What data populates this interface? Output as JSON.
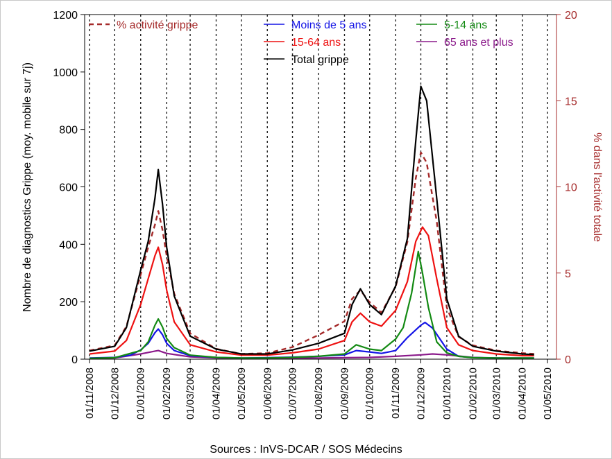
{
  "chart_data": {
    "type": "line",
    "title": "",
    "source": "Sources : InVS-DCAR / SOS Médecins",
    "ylabel": "Nombre de diagnostics Grippe (moy. mobile sur 7j)",
    "y2label": "% dans l'activité totale",
    "ylim": [
      0,
      1200
    ],
    "y2lim": [
      0,
      20
    ],
    "yticks": [
      "0",
      "200",
      "400",
      "600",
      "800",
      "1000",
      "1200"
    ],
    "y2ticks": [
      "0",
      "5",
      "10",
      "15",
      "20"
    ],
    "xticks": [
      "01/11/2008",
      "01/12/2008",
      "01/01/2009",
      "01/02/2009",
      "01/03/2009",
      "01/04/2009",
      "01/05/2009",
      "01/06/2009",
      "01/07/2009",
      "01/08/2009",
      "01/09/2009",
      "01/10/2009",
      "01/11/2009",
      "01/12/2009",
      "01/01/2010",
      "01/02/2010",
      "01/03/2010",
      "01/04/2010",
      "01/05/2010"
    ],
    "grid": "vertical dotted",
    "legend_position": "top",
    "series": [
      {
        "name": "Moins de 5 ans",
        "axis": "left",
        "color": "#1515e6",
        "style": "solid",
        "points": [
          [
            "01/11/2008",
            4
          ],
          [
            "01/12/2008",
            6
          ],
          [
            "20/12/2008",
            14
          ],
          [
            "01/01/2009",
            32
          ],
          [
            "10/01/2009",
            55
          ],
          [
            "18/01/2009",
            92
          ],
          [
            "22/01/2009",
            105
          ],
          [
            "27/01/2009",
            85
          ],
          [
            "01/02/2009",
            55
          ],
          [
            "10/02/2009",
            30
          ],
          [
            "01/03/2009",
            12
          ],
          [
            "01/04/2009",
            6
          ],
          [
            "01/05/2009",
            4
          ],
          [
            "01/06/2009",
            5
          ],
          [
            "01/07/2009",
            7
          ],
          [
            "01/08/2009",
            10
          ],
          [
            "01/09/2009",
            15
          ],
          [
            "15/09/2009",
            30
          ],
          [
            "01/10/2009",
            25
          ],
          [
            "15/10/2009",
            20
          ],
          [
            "01/11/2009",
            30
          ],
          [
            "15/11/2009",
            75
          ],
          [
            "01/12/2009",
            118
          ],
          [
            "06/12/2009",
            128
          ],
          [
            "15/12/2009",
            108
          ],
          [
            "01/01/2010",
            35
          ],
          [
            "15/01/2010",
            10
          ],
          [
            "01/02/2010",
            5
          ],
          [
            "01/03/2010",
            4
          ],
          [
            "01/04/2010",
            4
          ],
          [
            "15/04/2010",
            4
          ]
        ]
      },
      {
        "name": "5-14 ans",
        "axis": "left",
        "color": "#138a13",
        "style": "solid",
        "points": [
          [
            "01/11/2008",
            3
          ],
          [
            "01/12/2008",
            5
          ],
          [
            "01/01/2009",
            30
          ],
          [
            "10/01/2009",
            60
          ],
          [
            "18/01/2009",
            118
          ],
          [
            "22/01/2009",
            140
          ],
          [
            "27/01/2009",
            112
          ],
          [
            "01/02/2009",
            72
          ],
          [
            "10/02/2009",
            40
          ],
          [
            "01/03/2009",
            14
          ],
          [
            "01/04/2009",
            6
          ],
          [
            "01/05/2009",
            4
          ],
          [
            "01/06/2009",
            4
          ],
          [
            "01/07/2009",
            6
          ],
          [
            "01/08/2009",
            10
          ],
          [
            "01/09/2009",
            18
          ],
          [
            "15/09/2009",
            50
          ],
          [
            "01/10/2009",
            35
          ],
          [
            "15/10/2009",
            30
          ],
          [
            "01/11/2009",
            70
          ],
          [
            "10/11/2009",
            110
          ],
          [
            "20/11/2009",
            230
          ],
          [
            "28/11/2009",
            375
          ],
          [
            "03/12/2009",
            300
          ],
          [
            "10/12/2009",
            180
          ],
          [
            "20/12/2009",
            60
          ],
          [
            "01/01/2010",
            22
          ],
          [
            "15/01/2010",
            10
          ],
          [
            "01/02/2010",
            5
          ],
          [
            "01/03/2010",
            4
          ],
          [
            "01/04/2010",
            4
          ],
          [
            "15/04/2010",
            4
          ]
        ]
      },
      {
        "name": "15-64 ans",
        "axis": "left",
        "color": "#ee1111",
        "style": "solid",
        "points": [
          [
            "01/11/2008",
            18
          ],
          [
            "01/12/2008",
            28
          ],
          [
            "15/12/2008",
            65
          ],
          [
            "01/01/2009",
            190
          ],
          [
            "10/01/2009",
            280
          ],
          [
            "18/01/2009",
            360
          ],
          [
            "22/01/2009",
            390
          ],
          [
            "27/01/2009",
            330
          ],
          [
            "01/02/2009",
            240
          ],
          [
            "10/02/2009",
            130
          ],
          [
            "01/03/2009",
            50
          ],
          [
            "01/04/2009",
            25
          ],
          [
            "01/05/2009",
            14
          ],
          [
            "01/06/2009",
            14
          ],
          [
            "01/07/2009",
            22
          ],
          [
            "01/08/2009",
            35
          ],
          [
            "01/09/2009",
            65
          ],
          [
            "10/09/2009",
            130
          ],
          [
            "20/09/2009",
            160
          ],
          [
            "01/10/2009",
            130
          ],
          [
            "15/10/2009",
            115
          ],
          [
            "01/11/2009",
            170
          ],
          [
            "15/11/2009",
            270
          ],
          [
            "25/11/2009",
            410
          ],
          [
            "03/12/2009",
            460
          ],
          [
            "10/12/2009",
            430
          ],
          [
            "20/12/2009",
            280
          ],
          [
            "01/01/2010",
            110
          ],
          [
            "15/01/2010",
            50
          ],
          [
            "01/02/2010",
            30
          ],
          [
            "01/03/2010",
            18
          ],
          [
            "01/04/2010",
            12
          ],
          [
            "15/04/2010",
            12
          ]
        ]
      },
      {
        "name": "65 ans et plus",
        "axis": "left",
        "color": "#8b1a8b",
        "style": "solid",
        "points": [
          [
            "01/11/2008",
            3
          ],
          [
            "01/12/2008",
            4
          ],
          [
            "01/01/2009",
            18
          ],
          [
            "18/01/2009",
            28
          ],
          [
            "22/01/2009",
            30
          ],
          [
            "01/02/2009",
            20
          ],
          [
            "01/03/2009",
            8
          ],
          [
            "01/04/2009",
            4
          ],
          [
            "01/05/2009",
            3
          ],
          [
            "01/06/2009",
            3
          ],
          [
            "01/08/2009",
            4
          ],
          [
            "01/09/2009",
            5
          ],
          [
            "01/10/2009",
            6
          ],
          [
            "01/11/2009",
            10
          ],
          [
            "01/12/2009",
            15
          ],
          [
            "15/12/2009",
            18
          ],
          [
            "01/01/2010",
            15
          ],
          [
            "01/02/2010",
            6
          ],
          [
            "01/03/2010",
            4
          ],
          [
            "01/04/2010",
            3
          ],
          [
            "15/04/2010",
            3
          ]
        ]
      },
      {
        "name": "Total grippe",
        "axis": "left",
        "color": "#000000",
        "style": "solid",
        "points": [
          [
            "01/11/2008",
            28
          ],
          [
            "01/12/2008",
            45
          ],
          [
            "15/12/2008",
            110
          ],
          [
            "01/01/2009",
            310
          ],
          [
            "10/01/2009",
            410
          ],
          [
            "18/01/2009",
            560
          ],
          [
            "22/01/2009",
            660
          ],
          [
            "27/01/2009",
            540
          ],
          [
            "01/02/2009",
            390
          ],
          [
            "10/02/2009",
            220
          ],
          [
            "01/03/2009",
            80
          ],
          [
            "01/04/2009",
            35
          ],
          [
            "01/05/2009",
            18
          ],
          [
            "01/06/2009",
            18
          ],
          [
            "01/07/2009",
            32
          ],
          [
            "01/08/2009",
            55
          ],
          [
            "01/09/2009",
            90
          ],
          [
            "10/09/2009",
            190
          ],
          [
            "20/09/2009",
            245
          ],
          [
            "01/10/2009",
            190
          ],
          [
            "15/10/2009",
            155
          ],
          [
            "01/11/2009",
            255
          ],
          [
            "15/11/2009",
            420
          ],
          [
            "25/11/2009",
            760
          ],
          [
            "01/12/2009",
            950
          ],
          [
            "08/12/2009",
            900
          ],
          [
            "20/12/2009",
            560
          ],
          [
            "01/01/2010",
            210
          ],
          [
            "15/01/2010",
            80
          ],
          [
            "01/02/2010",
            45
          ],
          [
            "01/03/2010",
            28
          ],
          [
            "01/04/2010",
            18
          ],
          [
            "15/04/2010",
            16
          ]
        ]
      },
      {
        "name": "% activité grippe",
        "axis": "right",
        "color": "#a52a2a",
        "style": "dashed",
        "points": [
          [
            "01/11/2008",
            0.5
          ],
          [
            "01/12/2008",
            0.8
          ],
          [
            "15/12/2008",
            1.9
          ],
          [
            "01/01/2009",
            4.9
          ],
          [
            "10/01/2009",
            6.5
          ],
          [
            "18/01/2009",
            7.8
          ],
          [
            "22/01/2009",
            8.6
          ],
          [
            "27/01/2009",
            7.5
          ],
          [
            "01/02/2009",
            6.0
          ],
          [
            "10/02/2009",
            3.8
          ],
          [
            "01/03/2009",
            1.5
          ],
          [
            "01/04/2009",
            0.6
          ],
          [
            "01/05/2009",
            0.3
          ],
          [
            "01/06/2009",
            0.35
          ],
          [
            "01/07/2009",
            0.7
          ],
          [
            "01/08/2009",
            1.4
          ],
          [
            "01/09/2009",
            2.2
          ],
          [
            "10/09/2009",
            3.5
          ],
          [
            "20/09/2009",
            4.0
          ],
          [
            "01/10/2009",
            3.3
          ],
          [
            "15/10/2009",
            2.7
          ],
          [
            "01/11/2009",
            4.2
          ],
          [
            "15/11/2009",
            6.8
          ],
          [
            "25/11/2009",
            10.5
          ],
          [
            "01/12/2009",
            12.0
          ],
          [
            "08/12/2009",
            11.4
          ],
          [
            "20/12/2009",
            8.0
          ],
          [
            "01/01/2010",
            3.0
          ],
          [
            "15/01/2010",
            1.3
          ],
          [
            "01/02/2010",
            0.8
          ],
          [
            "01/03/2010",
            0.5
          ],
          [
            "01/04/2010",
            0.35
          ],
          [
            "15/04/2010",
            0.3
          ]
        ]
      }
    ]
  }
}
